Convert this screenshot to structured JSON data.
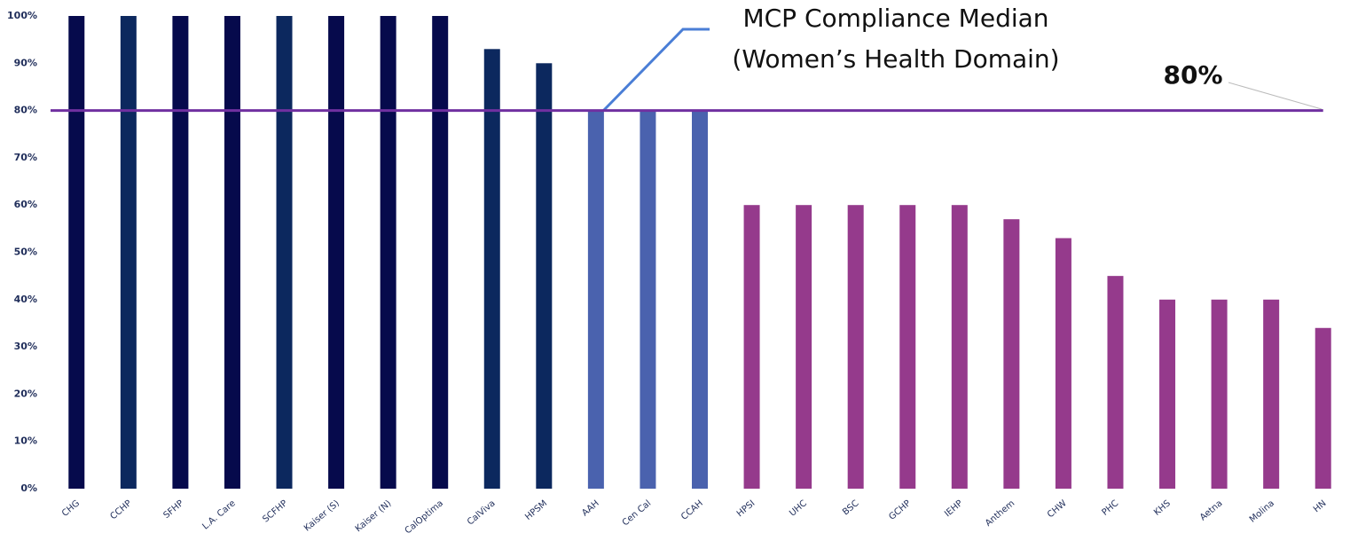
{
  "chart_data": {
    "type": "bar",
    "categories": [
      "CHG",
      "CCHP",
      "SFHP",
      "L.A. Care",
      "SCFHP",
      "Kaiser (S)",
      "Kaiser (N)",
      "CalOptima",
      "CalViva",
      "HPSM",
      "AAH",
      "Cen Cal",
      "CCAH",
      "HPSI",
      "UHC",
      "BSC",
      "GCHP",
      "IEHP",
      "Anthem",
      "CHW",
      "PHC",
      "KHS",
      "Aetna",
      "Molina",
      "HN"
    ],
    "values": [
      100,
      100,
      100,
      100,
      100,
      100,
      100,
      100,
      93,
      90,
      80,
      80,
      80,
      60,
      60,
      60,
      60,
      60,
      57,
      53,
      45,
      40,
      40,
      40,
      34
    ],
    "colors": [
      "#060a4c",
      "#0c285e",
      "#060a4c",
      "#060a4c",
      "#0c285e",
      "#060a4c",
      "#060a4c",
      "#060a4c",
      "#0c285e",
      "#0c285e",
      "#4a62ae",
      "#4a62ae",
      "#4a62ae",
      "#953a8c",
      "#953a8c",
      "#953a8c",
      "#953a8c",
      "#953a8c",
      "#953a8c",
      "#953a8c",
      "#953a8c",
      "#953a8c",
      "#953a8c",
      "#953a8c",
      "#953a8c"
    ],
    "ylim": [
      0,
      100
    ],
    "yticks": [
      {
        "value": 0,
        "label": "0%"
      },
      {
        "value": 10,
        "label": "10%"
      },
      {
        "value": 20,
        "label": "20%"
      },
      {
        "value": 30,
        "label": "30%"
      },
      {
        "value": 40,
        "label": "40%"
      },
      {
        "value": 50,
        "label": "50%"
      },
      {
        "value": 60,
        "label": "60%"
      },
      {
        "value": 70,
        "label": "70%"
      },
      {
        "value": 80,
        "label": "80%"
      },
      {
        "value": 90,
        "label": "90%"
      },
      {
        "value": 100,
        "label": "100%"
      }
    ],
    "grid": false,
    "median": {
      "value": 80,
      "label": "80%",
      "color": "#7030a0"
    },
    "annotation": [
      "MCP Compliance Median",
      "(Women’s Health Domain)"
    ]
  }
}
